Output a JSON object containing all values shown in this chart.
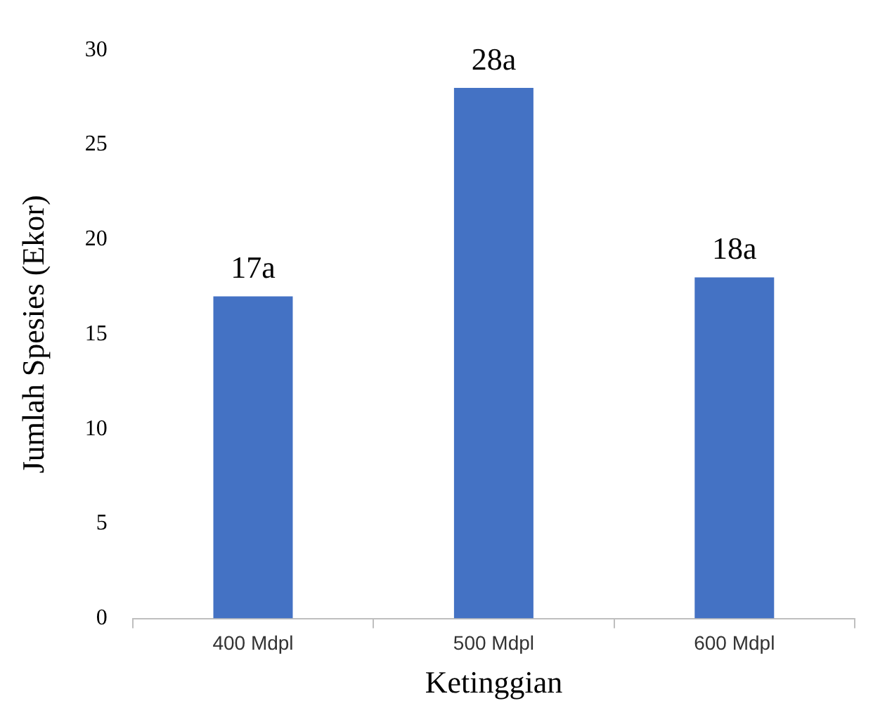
{
  "chart_data": {
    "type": "bar",
    "xlabel": "Ketinggian",
    "ylabel": "Jumlah Spesies (Ekor)",
    "categories": [
      "400 Mdpl",
      "500 Mdpl",
      "600 Mdpl"
    ],
    "values": [
      17,
      28,
      18
    ],
    "value_labels": [
      "17a",
      "28a",
      "18a"
    ],
    "color": "#4472c4",
    "ylim": [
      0,
      30
    ],
    "yticks": [
      0,
      5,
      10,
      15,
      20,
      25,
      30
    ],
    "grid": false
  }
}
